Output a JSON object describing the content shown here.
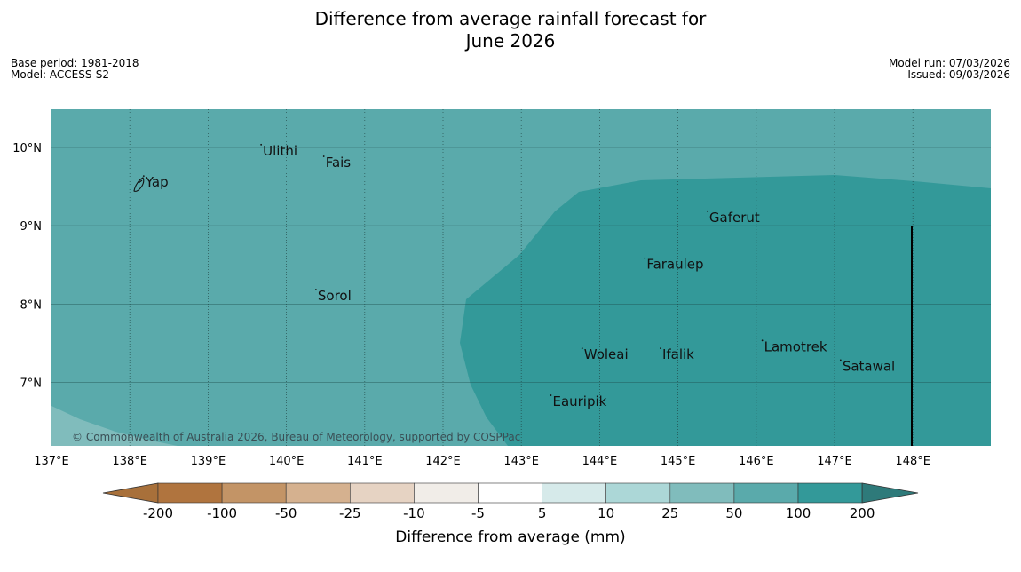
{
  "title": {
    "line1": "Difference from average rainfall forecast for",
    "line2": "June 2026"
  },
  "meta_left": {
    "base_period": "Base period: 1981-2018",
    "model": "Model: ACCESS-S2"
  },
  "meta_right": {
    "model_run": "Model run: 07/03/2026",
    "issued": "Issued: 09/03/2026"
  },
  "map": {
    "lon_range": [
      137,
      149
    ],
    "lat_range": [
      6.2,
      10.5
    ],
    "lon_ticks": [
      "137°E",
      "138°E",
      "139°E",
      "140°E",
      "141°E",
      "142°E",
      "143°E",
      "144°E",
      "145°E",
      "146°E",
      "147°E",
      "148°E"
    ],
    "lat_ticks": [
      "10°N",
      "9°N",
      "8°N",
      "7°N"
    ],
    "credit": "© Commonwealth of Australia 2026, Bureau of Meteorology, supported by COSPPac",
    "colors": {
      "band_50_100": "#5aaaab",
      "band_100_200": "#339999",
      "band_25_50": "#80bcbc"
    },
    "places": [
      {
        "name": "Yap",
        "lon": 138.2,
        "lat": 9.5
      },
      {
        "name": "Ulithi",
        "lon": 139.7,
        "lat": 9.9
      },
      {
        "name": "Fais",
        "lon": 140.5,
        "lat": 9.75
      },
      {
        "name": "Gaferut",
        "lon": 145.4,
        "lat": 9.05
      },
      {
        "name": "Faraulep",
        "lon": 144.6,
        "lat": 8.45
      },
      {
        "name": "Sorol",
        "lon": 140.4,
        "lat": 8.05
      },
      {
        "name": "Lamotrek",
        "lon": 146.1,
        "lat": 7.4
      },
      {
        "name": "Woleai",
        "lon": 143.8,
        "lat": 7.3
      },
      {
        "name": "Ifalik",
        "lon": 144.8,
        "lat": 7.3
      },
      {
        "name": "Satawal",
        "lon": 147.1,
        "lat": 7.15
      },
      {
        "name": "Eauripik",
        "lon": 143.4,
        "lat": 6.7
      }
    ]
  },
  "colorbar": {
    "ticks": [
      "-200",
      "-100",
      "-50",
      "-25",
      "-10",
      "-5",
      "5",
      "10",
      "25",
      "50",
      "100",
      "200"
    ],
    "colors": [
      "#a8703a",
      "#b0743e",
      "#c39466",
      "#d5b18f",
      "#e6d3c3",
      "#f1ede8",
      "#ffffff",
      "#d6eaea",
      "#acd7d7",
      "#80bcbc",
      "#5aaaab",
      "#339999",
      "#2e7a7a"
    ],
    "label": "Difference from average (mm)"
  }
}
